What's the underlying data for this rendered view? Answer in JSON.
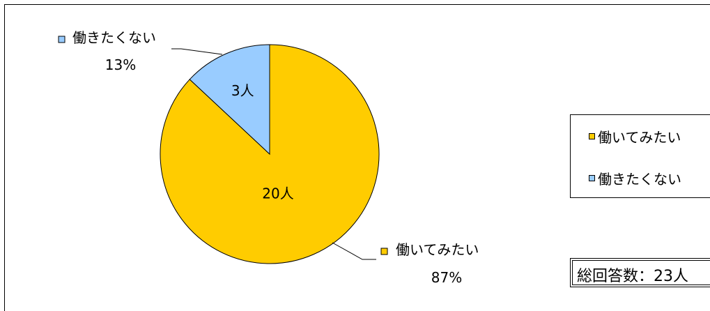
{
  "chart_data": {
    "type": "pie",
    "categories": [
      "働いてみたい",
      "働きたくない"
    ],
    "values": [
      20,
      3
    ],
    "value_labels": [
      "20人",
      "3人"
    ],
    "percent_labels": [
      "87%",
      "13%"
    ],
    "colors": [
      "#ffcc00",
      "#99ccff"
    ],
    "legend": {
      "placement": "right",
      "entries": [
        "働いてみたい",
        "働きたくない"
      ]
    },
    "title": ""
  },
  "total": {
    "label": "総回答数：23人"
  }
}
